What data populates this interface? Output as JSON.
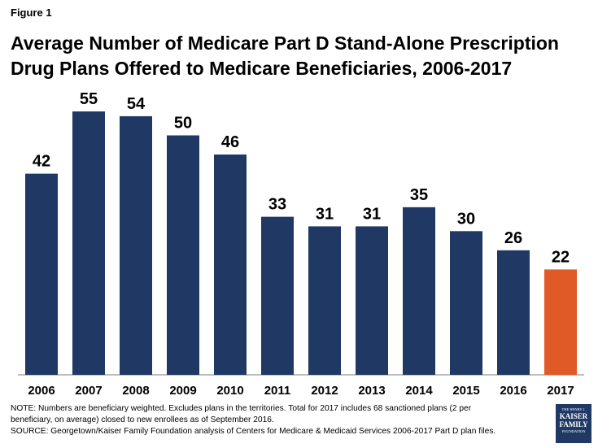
{
  "figure_label": "Figure 1",
  "title_lines": [
    "Average Number of Medicare Part D Stand-Alone Prescription",
    "Drug Plans Offered to Medicare Beneficiaries, 2006-2017"
  ],
  "chart_data": {
    "type": "bar",
    "title": "Average Number of Medicare Part D Stand-Alone Prescription Drug Plans Offered to Medicare Beneficiaries, 2006-2017",
    "categories": [
      "2006",
      "2007",
      "2008",
      "2009",
      "2010",
      "2011",
      "2012",
      "2013",
      "2014",
      "2015",
      "2016",
      "2017"
    ],
    "values": [
      42,
      55,
      54,
      50,
      46,
      33,
      31,
      31,
      35,
      30,
      26,
      22
    ],
    "xlabel": "",
    "ylabel": "",
    "ylim": [
      0,
      55
    ],
    "grid": false,
    "colors": {
      "default": "#1f3864",
      "highlight": "#e05a27",
      "highlight_category": "2017"
    }
  },
  "notes": [
    "NOTE: Numbers are beneficiary weighted.  Excludes plans in the territories.  Total for 2017 includes 68 sanctioned plans (2 per",
    "beneficiary, on average) closed to new enrollees as of September 2016.",
    "SOURCE: Georgetown/Kaiser Family Foundation  analysis of Centers for Medicare & Medicaid Services 2006-2017 Part D plan files."
  ],
  "logo": {
    "line1": "THE HENRY J.",
    "line2": "KAISER",
    "line3": "FAMILY",
    "line4": "FOUNDATION"
  }
}
